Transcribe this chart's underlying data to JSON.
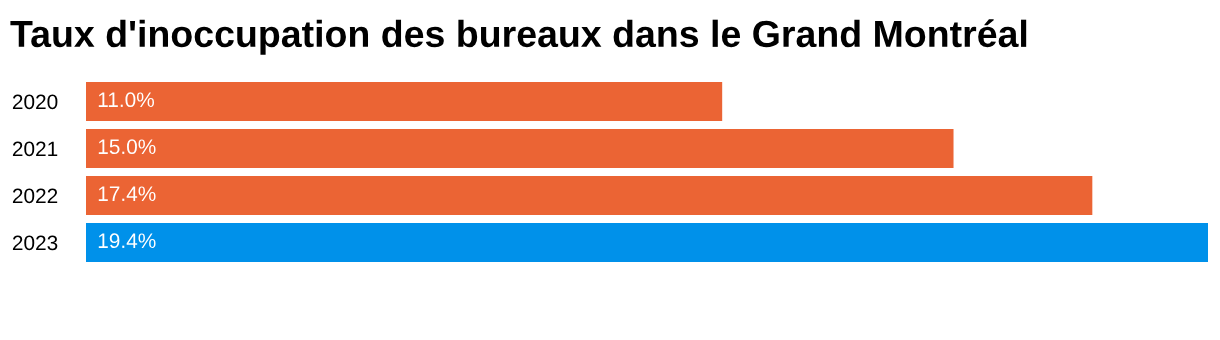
{
  "chart_data": {
    "type": "bar",
    "orientation": "horizontal",
    "title": "Taux d'inoccupation des bureaux dans le Grand Montréal",
    "categories": [
      "2020",
      "2021",
      "2022",
      "2023"
    ],
    "values": [
      11.0,
      15.0,
      17.4,
      19.4
    ],
    "colors": [
      "#eb6434",
      "#eb6434",
      "#eb6434",
      "#0091ea"
    ],
    "value_labels": [
      "11.0%",
      "15.0%",
      "17.4%",
      "19.4%"
    ],
    "tick_labels": "y",
    "grid": false,
    "legend": false
  }
}
